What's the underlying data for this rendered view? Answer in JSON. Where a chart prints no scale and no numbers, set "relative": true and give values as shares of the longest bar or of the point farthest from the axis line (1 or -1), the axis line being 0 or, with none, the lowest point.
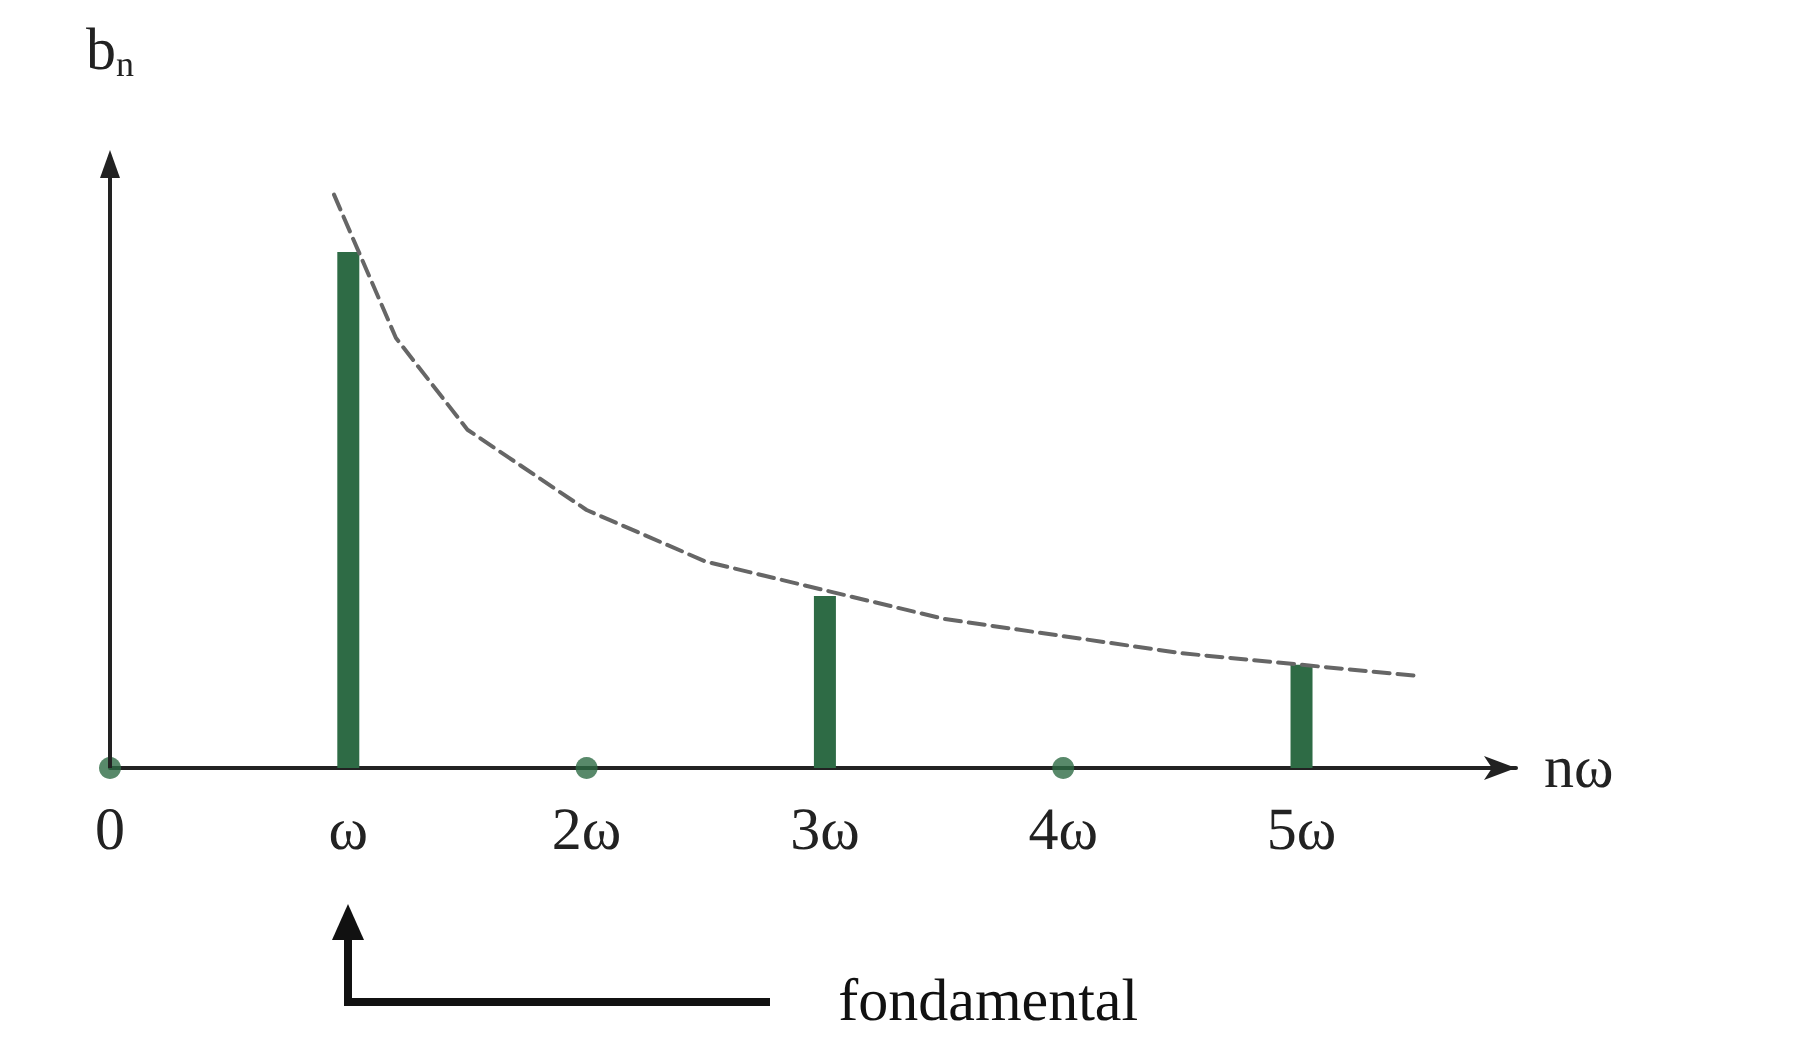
{
  "chart_data": {
    "type": "bar",
    "relative": true,
    "xlabel": "nω",
    "ylabel": "b$_{n}$",
    "xlim": [
      0,
      5.9
    ],
    "xticks": [
      {
        "value": 0,
        "label": "0"
      },
      {
        "value": 1,
        "label": "ω"
      },
      {
        "value": 2,
        "label": "2ω"
      },
      {
        "value": 3,
        "label": "3ω"
      },
      {
        "value": 4,
        "label": "4ω"
      },
      {
        "value": 5,
        "label": "5ω"
      }
    ],
    "series": [
      {
        "color": "#2e6b45",
        "x": [
          1,
          3,
          5
        ],
        "values": [
          0.9,
          0.3,
          0.18
        ]
      },
      {
        "type": "scatter",
        "color": "#2e6b45",
        "x": [
          0,
          2,
          4
        ],
        "values": [
          0,
          0,
          0
        ]
      },
      {
        "type": "line",
        "color": "#666666",
        "line_style": "dashed",
        "marker": "none",
        "x": [
          0.94,
          1.2,
          1.5,
          2,
          2.5,
          3,
          3.5,
          4,
          4.5,
          5,
          5.5
        ],
        "values": [
          1,
          0.75,
          0.59,
          0.45,
          0.36,
          0.31,
          0.26,
          0.23,
          0.2,
          0.18,
          0.16
        ]
      }
    ],
    "annotations": [
      "fondamental"
    ],
    "grid": false
  }
}
